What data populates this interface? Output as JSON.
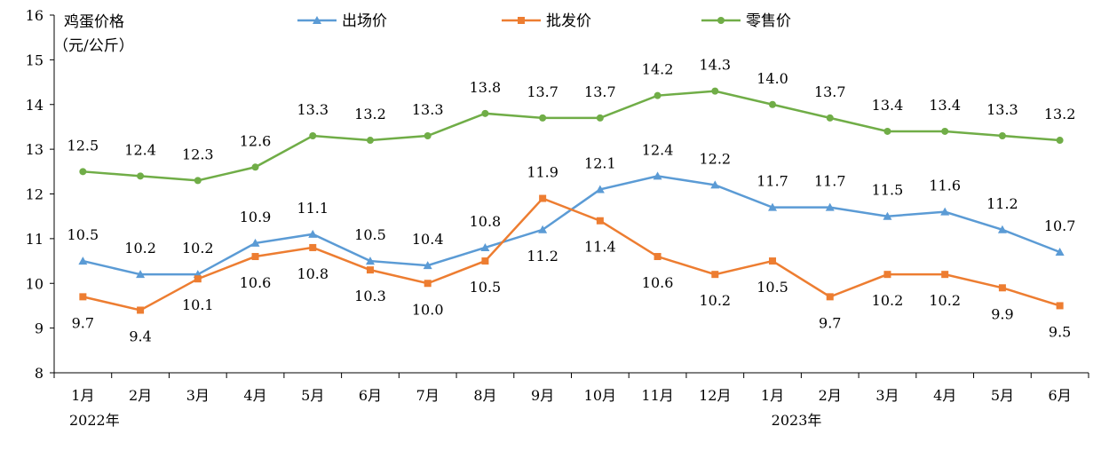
{
  "chart_data": {
    "type": "line",
    "ylabel_line1": "鸡蛋价格",
    "ylabel_line2": "（元/公斤）",
    "ylim": [
      8,
      16
    ],
    "yticks": [
      "8",
      "9",
      "10",
      "11",
      "12",
      "13",
      "14",
      "15",
      "16"
    ],
    "categories": [
      "1月",
      "2月",
      "3月",
      "4月",
      "5月",
      "6月",
      "7月",
      "8月",
      "9月",
      "10月",
      "11月",
      "12月",
      "1月",
      "2月",
      "3月",
      "4月",
      "5月",
      "6月"
    ],
    "year_labels": [
      "2022年",
      "2023年"
    ],
    "grid": false,
    "legend_position": "top",
    "series": [
      {
        "name": "出场价",
        "color": "#5B9BD5",
        "marker": "triangle",
        "values": [
          10.5,
          10.2,
          10.2,
          10.9,
          11.1,
          10.5,
          10.4,
          10.8,
          11.2,
          12.1,
          12.4,
          12.2,
          11.7,
          11.7,
          11.5,
          11.6,
          11.2,
          10.7
        ]
      },
      {
        "name": "批发价",
        "color": "#ED7D31",
        "marker": "square",
        "values": [
          9.7,
          9.4,
          10.1,
          10.6,
          10.8,
          10.3,
          10.0,
          10.5,
          11.9,
          11.4,
          10.6,
          10.2,
          10.5,
          9.7,
          10.2,
          10.2,
          9.9,
          9.5
        ]
      },
      {
        "name": "零售价",
        "color": "#70AD47",
        "marker": "circle",
        "values": [
          12.5,
          12.4,
          12.3,
          12.6,
          13.3,
          13.2,
          13.3,
          13.8,
          13.7,
          13.7,
          14.2,
          14.3,
          14.0,
          13.7,
          13.4,
          13.4,
          13.3,
          13.2
        ]
      }
    ]
  }
}
